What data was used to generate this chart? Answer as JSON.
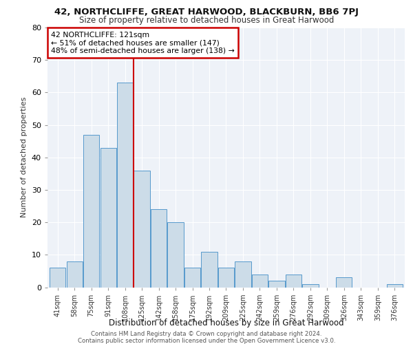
{
  "title1": "42, NORTHCLIFFE, GREAT HARWOOD, BLACKBURN, BB6 7PJ",
  "title2": "Size of property relative to detached houses in Great Harwood",
  "xlabel": "Distribution of detached houses by size in Great Harwood",
  "ylabel": "Number of detached properties",
  "categories": [
    "41sqm",
    "58sqm",
    "75sqm",
    "91sqm",
    "108sqm",
    "125sqm",
    "142sqm",
    "158sqm",
    "175sqm",
    "192sqm",
    "209sqm",
    "225sqm",
    "242sqm",
    "259sqm",
    "276sqm",
    "292sqm",
    "309sqm",
    "326sqm",
    "343sqm",
    "359sqm",
    "376sqm"
  ],
  "values": [
    6,
    8,
    47,
    43,
    63,
    36,
    24,
    20,
    6,
    11,
    6,
    8,
    4,
    2,
    4,
    1,
    0,
    3,
    0,
    0,
    1
  ],
  "bar_color": "#ccdce8",
  "bar_edge_color": "#5599cc",
  "highlight_index": 5,
  "highlight_line_color": "#cc0000",
  "annotation_text": "42 NORTHCLIFFE: 121sqm\n← 51% of detached houses are smaller (147)\n48% of semi-detached houses are larger (138) →",
  "annotation_box_color": "#ffffff",
  "annotation_box_edge_color": "#cc0000",
  "footer1": "Contains HM Land Registry data © Crown copyright and database right 2024.",
  "footer2": "Contains public sector information licensed under the Open Government Licence v3.0.",
  "background_color": "#eef2f8",
  "ylim": [
    0,
    80
  ],
  "yticks": [
    0,
    10,
    20,
    30,
    40,
    50,
    60,
    70,
    80
  ]
}
